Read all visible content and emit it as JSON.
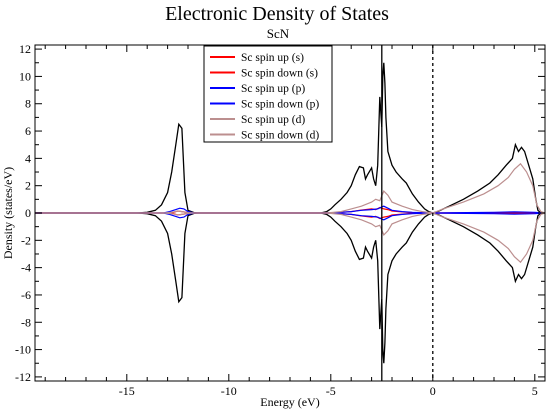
{
  "chart_data": {
    "type": "line",
    "title": "Electronic Density of States",
    "subtitle": "ScN",
    "xlabel": "Energy (eV)",
    "ylabel": "Density (states/eV)",
    "xlim": [
      -19.5,
      5.5
    ],
    "ylim": [
      -12.3,
      12.3
    ],
    "xticks": [
      -15,
      -10,
      -5,
      0,
      5
    ],
    "yticks": [
      -12,
      -10,
      -8,
      -6,
      -4,
      -2,
      0,
      2,
      4,
      6,
      8,
      10,
      12
    ],
    "grid": false,
    "legend_position": "top-center",
    "reference_lines": [
      {
        "x": -2.5,
        "style": "solid",
        "color": "#000000"
      },
      {
        "x": 0,
        "style": "dashed",
        "color": "#000000"
      }
    ],
    "total_dos": {
      "color": "#000000",
      "x": [
        -19.5,
        -14.5,
        -14.0,
        -13.6,
        -13.3,
        -13.0,
        -12.8,
        -12.6,
        -12.45,
        -12.3,
        -12.15,
        -12.0,
        -11.7,
        -11.5,
        -5.5,
        -5.2,
        -5.0,
        -4.8,
        -4.5,
        -4.2,
        -4.0,
        -3.8,
        -3.6,
        -3.4,
        -3.3,
        -3.2,
        -3.0,
        -2.9,
        -2.8,
        -2.7,
        -2.6,
        -2.5,
        -2.45,
        -2.4,
        -2.35,
        -2.3,
        -2.2,
        -2.0,
        -1.8,
        -1.5,
        -1.3,
        -1.0,
        -0.7,
        -0.4,
        -0.2,
        0.0,
        0.3,
        0.8,
        1.5,
        2.2,
        2.8,
        3.2,
        3.6,
        3.9,
        4.05,
        4.2,
        4.35,
        4.5,
        4.7,
        4.9,
        5.05,
        5.15,
        5.3,
        5.5
      ],
      "values": [
        0,
        0,
        0.05,
        0.2,
        0.6,
        1.5,
        3.0,
        5.0,
        6.5,
        6.2,
        1.5,
        0.2,
        0.03,
        0,
        0,
        0.1,
        0.3,
        0.6,
        1.0,
        1.5,
        2.0,
        2.8,
        3.4,
        3.3,
        2.5,
        2.8,
        3.3,
        2.5,
        2.0,
        3.5,
        8.5,
        6.3,
        10.0,
        11.0,
        9.5,
        7.0,
        4.5,
        3.5,
        3.0,
        2.5,
        2.2,
        1.4,
        0.8,
        0.3,
        0.1,
        0,
        0.15,
        0.5,
        1.0,
        1.6,
        2.2,
        2.8,
        3.5,
        4.0,
        5.0,
        4.5,
        4.8,
        4.5,
        3.5,
        2.5,
        1.0,
        0.2,
        0,
        0
      ]
    },
    "series": [
      {
        "name": "Sc spin up (s)",
        "color": "#ff0000",
        "x": [
          -19.5,
          -13.0,
          -12.7,
          -12.5,
          -12.3,
          -12.0,
          -11.7,
          -5.2,
          -4.5,
          -4.0,
          -3.6,
          -3.3,
          -3.0,
          -2.8,
          -2.6,
          -2.4,
          -2.2,
          -2.0,
          -1.5,
          -1.0,
          -0.5,
          0.0,
          5.5
        ],
        "values": [
          0,
          0,
          0.05,
          0.15,
          0.1,
          0.03,
          0,
          0,
          0.05,
          0.1,
          0.2,
          0.25,
          0.3,
          0.25,
          0.4,
          0.3,
          0.25,
          0.15,
          0.08,
          0.03,
          0.01,
          0,
          0
        ]
      },
      {
        "name": "Sc spin down (s)",
        "color": "#ff0000",
        "x": [
          -19.5,
          -13.0,
          -12.7,
          -12.5,
          -12.3,
          -12.0,
          -11.7,
          -5.2,
          -4.5,
          -4.0,
          -3.6,
          -3.3,
          -3.0,
          -2.8,
          -2.6,
          -2.4,
          -2.2,
          -2.0,
          -1.5,
          -1.0,
          -0.5,
          0.0,
          5.5
        ],
        "values": [
          0,
          0,
          -0.05,
          -0.15,
          -0.1,
          -0.03,
          0,
          0,
          -0.05,
          -0.1,
          -0.2,
          -0.25,
          -0.3,
          -0.25,
          -0.4,
          -0.3,
          -0.25,
          -0.15,
          -0.08,
          -0.03,
          -0.01,
          0,
          0
        ]
      },
      {
        "name": "Sc spin up (p)",
        "color": "#0000ff",
        "x": [
          -19.5,
          -13.2,
          -12.9,
          -12.6,
          -12.4,
          -12.2,
          -12.0,
          -11.7,
          -5.2,
          -4.5,
          -4.0,
          -3.5,
          -3.0,
          -2.7,
          -2.5,
          -2.4,
          -2.2,
          -2.0,
          -1.5,
          -1.0,
          -0.5,
          0.0,
          1.0,
          3.0,
          4.0,
          5.0,
          5.5
        ],
        "values": [
          0,
          0,
          0.1,
          0.25,
          0.35,
          0.3,
          0.1,
          0,
          0,
          0.05,
          0.1,
          0.2,
          0.25,
          0.3,
          0.45,
          0.5,
          0.35,
          0.2,
          0.1,
          0.05,
          0.02,
          0,
          0.02,
          0.05,
          0.08,
          0.05,
          0
        ]
      },
      {
        "name": "Sc spin down (p)",
        "color": "#0000ff",
        "x": [
          -19.5,
          -13.2,
          -12.9,
          -12.6,
          -12.4,
          -12.2,
          -12.0,
          -11.7,
          -5.2,
          -4.5,
          -4.0,
          -3.5,
          -3.0,
          -2.7,
          -2.5,
          -2.4,
          -2.2,
          -2.0,
          -1.5,
          -1.0,
          -0.5,
          0.0,
          1.0,
          3.0,
          4.0,
          5.0,
          5.5
        ],
        "values": [
          0,
          0,
          -0.1,
          -0.25,
          -0.35,
          -0.3,
          -0.1,
          0,
          0,
          -0.05,
          -0.1,
          -0.2,
          -0.25,
          -0.3,
          -0.45,
          -0.5,
          -0.35,
          -0.2,
          -0.1,
          -0.05,
          -0.02,
          0,
          -0.02,
          -0.05,
          -0.08,
          -0.05,
          0
        ]
      },
      {
        "name": "Sc spin up (d)",
        "color": "#bc8f8f",
        "x": [
          -19.5,
          -13.2,
          -12.8,
          -12.5,
          -12.3,
          -12.0,
          -11.7,
          -5.2,
          -4.5,
          -4.0,
          -3.5,
          -3.0,
          -2.8,
          -2.6,
          -2.4,
          -2.2,
          -2.0,
          -1.5,
          -1.0,
          -0.5,
          0.0,
          0.5,
          1.5,
          2.5,
          3.2,
          3.7,
          4.0,
          4.3,
          4.6,
          4.9,
          5.1,
          5.3,
          5.5
        ],
        "values": [
          0,
          0,
          0.05,
          0.15,
          0.1,
          0.03,
          0,
          0,
          0.1,
          0.3,
          0.5,
          0.8,
          1.0,
          0.9,
          1.6,
          1.3,
          0.8,
          0.5,
          0.25,
          0.1,
          0,
          0.3,
          0.8,
          1.4,
          2.0,
          2.6,
          3.2,
          3.6,
          3.0,
          2.0,
          0.6,
          0.1,
          0
        ]
      },
      {
        "name": "Sc spin down (d)",
        "color": "#bc8f8f",
        "x": [
          -19.5,
          -13.2,
          -12.8,
          -12.5,
          -12.3,
          -12.0,
          -11.7,
          -5.2,
          -4.5,
          -4.0,
          -3.5,
          -3.0,
          -2.8,
          -2.6,
          -2.4,
          -2.2,
          -2.0,
          -1.5,
          -1.0,
          -0.5,
          0.0,
          0.5,
          1.5,
          2.5,
          3.2,
          3.7,
          4.0,
          4.3,
          4.6,
          4.9,
          5.1,
          5.3,
          5.5
        ],
        "values": [
          0,
          0,
          -0.05,
          -0.15,
          -0.1,
          -0.03,
          0,
          0,
          -0.1,
          -0.3,
          -0.5,
          -0.8,
          -1.0,
          -0.9,
          -1.6,
          -1.3,
          -0.8,
          -0.5,
          -0.25,
          -0.1,
          0,
          -0.3,
          -0.8,
          -1.4,
          -2.0,
          -2.6,
          -3.2,
          -3.6,
          -3.0,
          -2.0,
          -0.6,
          -0.1,
          0
        ]
      }
    ]
  }
}
